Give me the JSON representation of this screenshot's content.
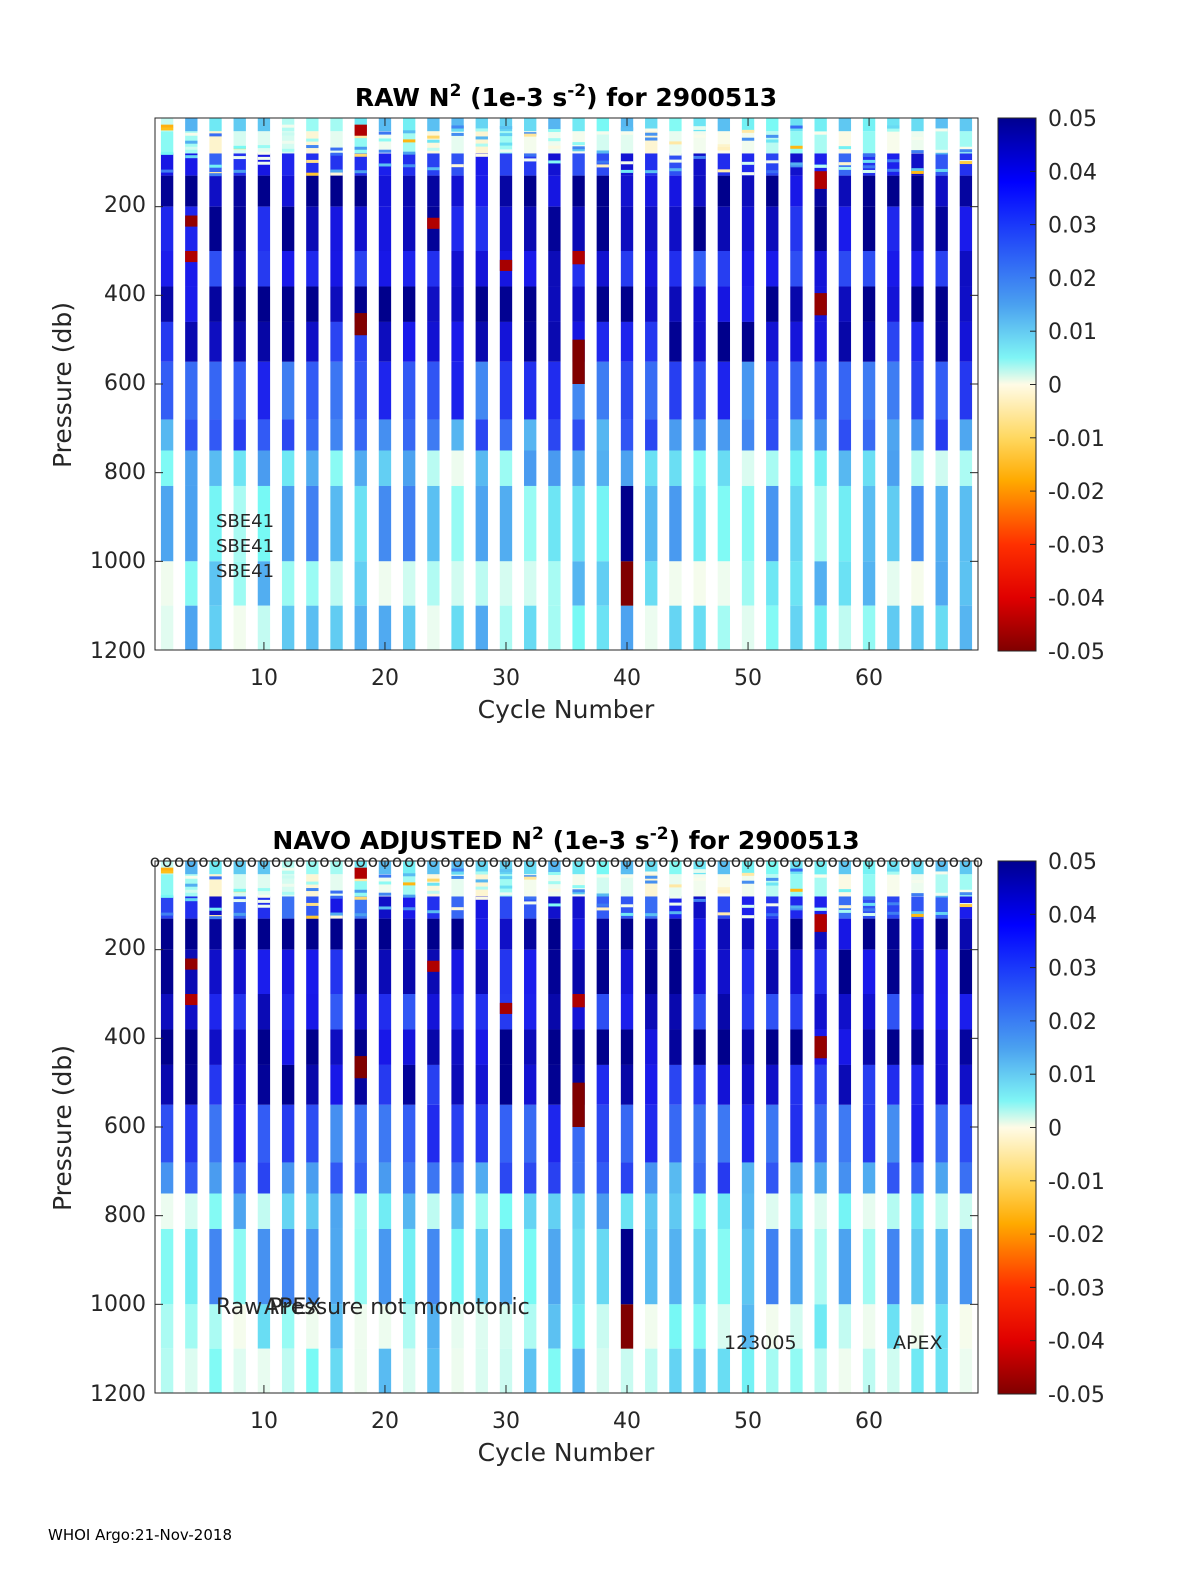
{
  "chart_data": [
    {
      "type": "heatmap",
      "title_prefix": "RAW N",
      "title_sup1": "2",
      "title_mid": " (1e-3 s",
      "title_sup2": "-2",
      "title_suffix": ") for 2900513",
      "xlabel": "Cycle Number",
      "ylabel": "Pressure (db)",
      "xlim": [
        1,
        69
      ],
      "ylim": [
        0,
        1200
      ],
      "xticks": [
        "10",
        "20",
        "30",
        "40",
        "50",
        "60"
      ],
      "yticks": [
        "200",
        "400",
        "600",
        "800",
        "1000",
        "1200"
      ],
      "colorbar": {
        "range": [
          -0.05,
          0.05
        ],
        "ticks": [
          "0.05",
          "0.04",
          "0.03",
          "0.02",
          "0.01",
          "0",
          "-0.01",
          "-0.02",
          "-0.03",
          "-0.04",
          "-0.05"
        ]
      },
      "annotations": [
        "SBE41",
        "SBE41",
        "SBE41"
      ],
      "markers": []
    },
    {
      "type": "heatmap",
      "title_prefix": "NAVO  ADJUSTED N",
      "title_sup1": "2",
      "title_mid": " (1e-3 s",
      "title_sup2": "-2",
      "title_suffix": ") for 2900513",
      "xlabel": "Cycle Number",
      "ylabel": "Pressure (db)",
      "xlim": [
        1,
        69
      ],
      "ylim": [
        0,
        1200
      ],
      "xticks": [
        "10",
        "20",
        "30",
        "40",
        "50",
        "60"
      ],
      "yticks": [
        "200",
        "400",
        "600",
        "800",
        "1000",
        "1200"
      ],
      "colorbar": {
        "range": [
          -0.05,
          0.05
        ],
        "ticks": [
          "0.05",
          "0.04",
          "0.03",
          "0.02",
          "0.01",
          "0",
          "-0.01",
          "-0.02",
          "-0.03",
          "-0.04",
          "-0.05"
        ]
      },
      "annotations": [
        "Raw Pressure not monotonic",
        "APEX",
        "123005",
        "APEX"
      ],
      "markers": [
        "o"
      ]
    }
  ],
  "profiles": {
    "cycles": [
      2,
      4,
      6,
      8,
      10,
      12,
      14,
      16,
      18,
      20,
      22,
      24,
      26,
      28,
      30,
      32,
      34,
      36,
      38,
      40,
      42,
      44,
      46,
      48,
      50,
      52,
      54,
      56,
      58,
      60,
      62,
      64,
      66,
      68
    ],
    "bins": [
      [
        0,
        30,
        0.012
      ],
      [
        30,
        80,
        0.004
      ],
      [
        80,
        130,
        0.035
      ],
      [
        130,
        200,
        0.048
      ],
      [
        200,
        300,
        0.044
      ],
      [
        300,
        380,
        0.038
      ],
      [
        380,
        460,
        0.048
      ],
      [
        460,
        550,
        0.042
      ],
      [
        550,
        680,
        0.03
      ],
      [
        680,
        750,
        0.026
      ],
      [
        750,
        830,
        0.012
      ],
      [
        830,
        1000,
        0.016
      ],
      [
        1000,
        1100,
        0.01
      ],
      [
        1100,
        1200,
        0.011
      ]
    ],
    "anomalies": [
      {
        "cycle": 4,
        "p0": 220,
        "p1": 245,
        "v": -0.048
      },
      {
        "cycle": 4,
        "p0": 300,
        "p1": 325,
        "v": -0.045
      },
      {
        "cycle": 18,
        "p0": 440,
        "p1": 490,
        "v": -0.05
      },
      {
        "cycle": 18,
        "p0": 15,
        "p1": 40,
        "v": -0.045
      },
      {
        "cycle": 24,
        "p0": 225,
        "p1": 250,
        "v": -0.045
      },
      {
        "cycle": 30,
        "p0": 320,
        "p1": 345,
        "v": -0.046
      },
      {
        "cycle": 36,
        "p0": 300,
        "p1": 330,
        "v": -0.045
      },
      {
        "cycle": 36,
        "p0": 500,
        "p1": 600,
        "v": -0.05
      },
      {
        "cycle": 40,
        "p0": 830,
        "p1": 1000,
        "v": 0.05
      },
      {
        "cycle": 40,
        "p0": 1000,
        "p1": 1100,
        "v": -0.05
      },
      {
        "cycle": 56,
        "p0": 120,
        "p1": 160,
        "v": -0.045
      },
      {
        "cycle": 56,
        "p0": 395,
        "p1": 445,
        "v": -0.048
      }
    ]
  },
  "footer": "WHOI Argo:21-Nov-2018"
}
